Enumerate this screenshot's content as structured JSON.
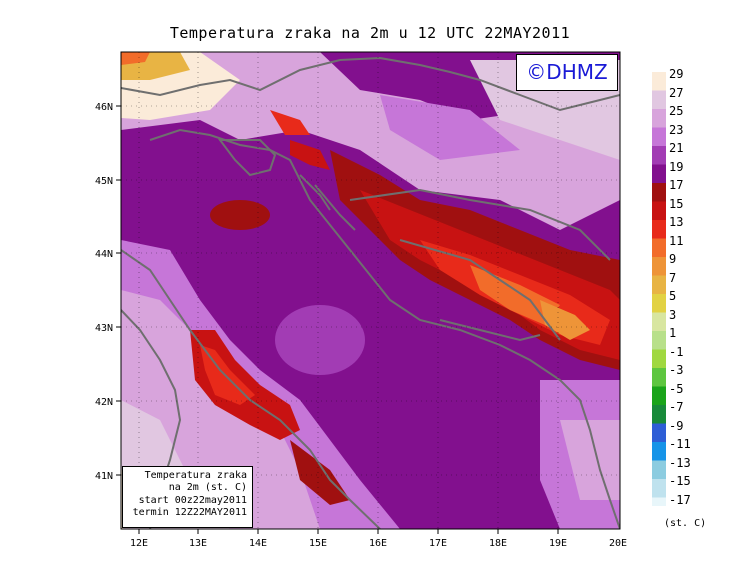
{
  "title": "Temperatura zraka na 2m u 12 UTC 22MAY2011",
  "logo": "©DHMZ",
  "info": {
    "line1": "Temperatura zraka",
    "line2": "na 2m (st. C)",
    "line3": "start 00z22may2011",
    "line4": "termin 12Z22MAY2011"
  },
  "axes": {
    "x_ticks": [
      "12E",
      "13E",
      "14E",
      "15E",
      "16E",
      "17E",
      "18E",
      "19E",
      "20E"
    ],
    "y_ticks": [
      "46N",
      "45N",
      "44N",
      "43N",
      "42N",
      "41N"
    ]
  },
  "colorbar": {
    "unit": "(st. C)",
    "labels": [
      "29",
      "27",
      "25",
      "23",
      "21",
      "19",
      "17",
      "15",
      "13",
      "11",
      "9",
      "7",
      "5",
      "3",
      "1",
      "-1",
      "-3",
      "-5",
      "-7",
      "-9",
      "-11",
      "-13",
      "-15",
      "-17"
    ],
    "colors": [
      "#fbebd9",
      "#e1c7e1",
      "#d8a4dc",
      "#c676d8",
      "#a23cb4",
      "#82108e",
      "#a01010",
      "#c81212",
      "#e82a1a",
      "#f26c2a",
      "#ee9438",
      "#e8b444",
      "#e2d244",
      "#d8e6a0",
      "#b8e08a",
      "#a0d840",
      "#5ec640",
      "#1aa41a",
      "#188a3a",
      "#2e5ed6",
      "#1694e8",
      "#8ccce0",
      "#bfe2ee",
      "#e8f6fa"
    ]
  }
}
